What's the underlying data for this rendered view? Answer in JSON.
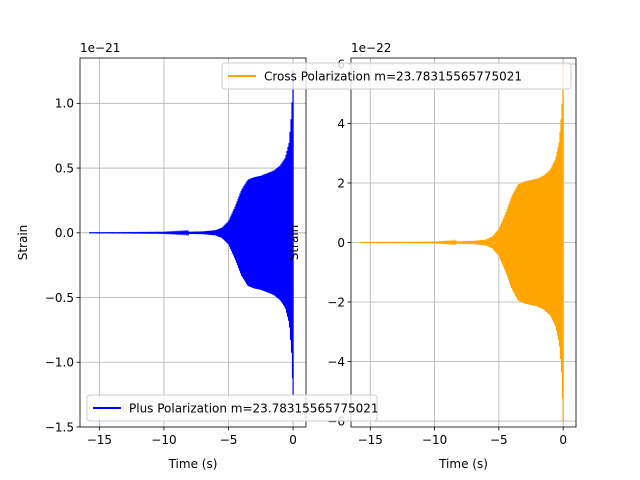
{
  "chart_data": [
    {
      "type": "line",
      "xlabel": "Time (s)",
      "ylabel": "Strain",
      "offset_text": "1e−21",
      "xlim": [
        -16.5,
        1.0
      ],
      "ylim": [
        -1.5,
        1.35
      ],
      "xticks": [
        -15,
        -10,
        -5,
        0
      ],
      "xtick_labels": [
        "−15",
        "−10",
        "−5",
        "0"
      ],
      "yticks": [
        -1.5,
        -1.0,
        -0.5,
        0.0,
        0.5,
        1.0
      ],
      "ytick_labels": [
        "−1.5",
        "−1.0",
        "−0.5",
        "0.0",
        "0.5",
        "1.0"
      ],
      "grid": true,
      "legend_position": "lower-left",
      "series": [
        {
          "name": "Plus Polarization m=23.78315565775021",
          "color": "#0000ff",
          "envelope": {
            "t": [
              -15.8,
              -10,
              -7,
              -6,
              -5.5,
              -5,
              -4.5,
              -4,
              -3.5,
              -3,
              -2.5,
              -2,
              -1.5,
              -1,
              -0.6,
              -0.3,
              -0.1,
              0.0
            ],
            "amp": [
              0.0,
              0.003,
              0.01,
              0.02,
              0.04,
              0.09,
              0.2,
              0.33,
              0.41,
              0.43,
              0.44,
              0.46,
              0.48,
              0.52,
              0.58,
              0.7,
              0.95,
              1.25
            ]
          }
        }
      ]
    },
    {
      "type": "line",
      "xlabel": "Time (s)",
      "ylabel": "Strain",
      "offset_text": "1e−22",
      "xlim": [
        -16.5,
        1.0
      ],
      "ylim": [
        -6.2,
        6.2
      ],
      "xticks": [
        -15,
        -10,
        -5,
        0
      ],
      "xtick_labels": [
        "−15",
        "−10",
        "−5",
        "0"
      ],
      "yticks": [
        -6,
        -4,
        -2,
        0,
        2,
        4,
        6
      ],
      "ytick_labels": [
        "−6",
        "−4",
        "−2",
        "0",
        "2",
        "4",
        "6"
      ],
      "grid": true,
      "legend_position": "upper-right",
      "series": [
        {
          "name": "Cross Polarization m=23.78315565775021",
          "color": "#ffa500",
          "envelope": {
            "t": [
              -15.8,
              -10,
              -7,
              -6,
              -5.5,
              -5,
              -4.5,
              -4,
              -3.5,
              -3,
              -2.5,
              -2,
              -1.5,
              -1,
              -0.6,
              -0.3,
              -0.1,
              0.0
            ],
            "amp": [
              0.0,
              0.01,
              0.05,
              0.1,
              0.2,
              0.45,
              0.95,
              1.55,
              1.95,
              2.05,
              2.1,
              2.15,
              2.25,
              2.45,
              2.8,
              3.4,
              4.5,
              6.0
            ]
          }
        }
      ]
    }
  ]
}
